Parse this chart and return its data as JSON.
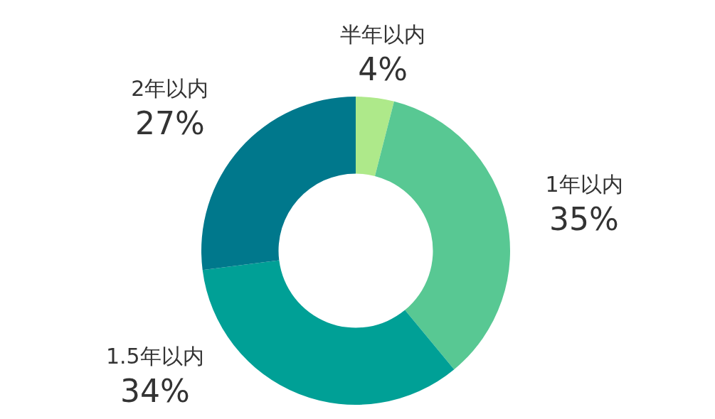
{
  "chart_data": {
    "type": "donut",
    "categories": [
      "半年以内",
      "1年以内",
      "1.5年以内",
      "2年以内"
    ],
    "values": [
      4,
      35,
      34,
      27
    ],
    "colors": [
      "#aee98a",
      "#58c893",
      "#00a096",
      "#00788c"
    ],
    "value_labels": [
      "4%",
      "35%",
      "34%",
      "27%"
    ]
  }
}
